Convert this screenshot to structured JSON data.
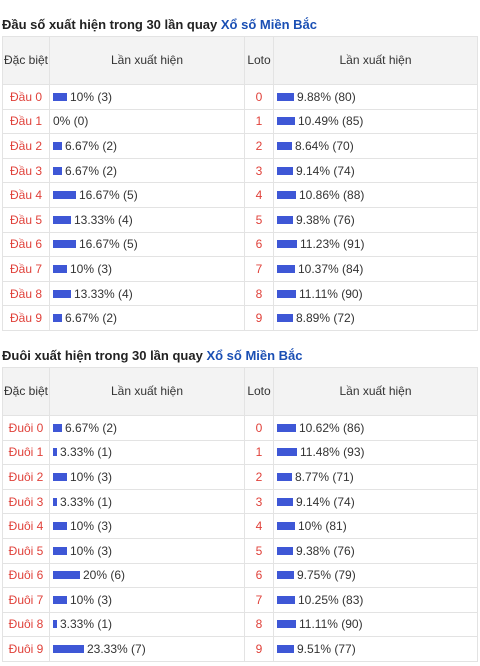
{
  "head_section": {
    "title_prefix": "Đầu số xuất hiện trong 30 lần quay",
    "title_link": "Xổ số Miền Bắc",
    "headers": {
      "col1": "Đặc biệt",
      "col2": "Lần xuất hiện",
      "col3": "Loto",
      "col4": "Lần xuất hiện"
    },
    "rows": [
      {
        "label": "Đầu 0",
        "special": "10% (3)",
        "special_pct": 10,
        "loto": "0",
        "loto_count": "9.88% (80)",
        "loto_pct": 9.88
      },
      {
        "label": "Đầu 1",
        "special": "0% (0)",
        "special_pct": 0,
        "loto": "1",
        "loto_count": "10.49% (85)",
        "loto_pct": 10.49
      },
      {
        "label": "Đầu 2",
        "special": "6.67% (2)",
        "special_pct": 6.67,
        "loto": "2",
        "loto_count": "8.64% (70)",
        "loto_pct": 8.64
      },
      {
        "label": "Đầu 3",
        "special": "6.67% (2)",
        "special_pct": 6.67,
        "loto": "3",
        "loto_count": "9.14% (74)",
        "loto_pct": 9.14
      },
      {
        "label": "Đầu 4",
        "special": "16.67% (5)",
        "special_pct": 16.67,
        "loto": "4",
        "loto_count": "10.86% (88)",
        "loto_pct": 10.86
      },
      {
        "label": "Đầu 5",
        "special": "13.33% (4)",
        "special_pct": 13.33,
        "loto": "5",
        "loto_count": "9.38% (76)",
        "loto_pct": 9.38
      },
      {
        "label": "Đầu 6",
        "special": "16.67% (5)",
        "special_pct": 16.67,
        "loto": "6",
        "loto_count": "11.23% (91)",
        "loto_pct": 11.23
      },
      {
        "label": "Đầu 7",
        "special": "10% (3)",
        "special_pct": 10,
        "loto": "7",
        "loto_count": "10.37% (84)",
        "loto_pct": 10.37
      },
      {
        "label": "Đầu 8",
        "special": "13.33% (4)",
        "special_pct": 13.33,
        "loto": "8",
        "loto_count": "11.11% (90)",
        "loto_pct": 11.11
      },
      {
        "label": "Đầu 9",
        "special": "6.67% (2)",
        "special_pct": 6.67,
        "loto": "9",
        "loto_count": "8.89% (72)",
        "loto_pct": 8.89
      }
    ]
  },
  "tail_section": {
    "title_prefix": "Đuôi xuất hiện trong 30 lần quay",
    "title_link": "Xổ số Miền Bắc",
    "headers": {
      "col1": "Đặc biệt",
      "col2": "Lần xuất hiện",
      "col3": "Loto",
      "col4": "Lần xuất hiện"
    },
    "rows": [
      {
        "label": "Đuôi 0",
        "special": "6.67% (2)",
        "special_pct": 6.67,
        "loto": "0",
        "loto_count": "10.62% (86)",
        "loto_pct": 10.62
      },
      {
        "label": "Đuôi 1",
        "special": "3.33% (1)",
        "special_pct": 3.33,
        "loto": "1",
        "loto_count": "11.48% (93)",
        "loto_pct": 11.48
      },
      {
        "label": "Đuôi 2",
        "special": "10% (3)",
        "special_pct": 10,
        "loto": "2",
        "loto_count": "8.77% (71)",
        "loto_pct": 8.77
      },
      {
        "label": "Đuôi 3",
        "special": "3.33% (1)",
        "special_pct": 3.33,
        "loto": "3",
        "loto_count": "9.14% (74)",
        "loto_pct": 9.14
      },
      {
        "label": "Đuôi 4",
        "special": "10% (3)",
        "special_pct": 10,
        "loto": "4",
        "loto_count": "10% (81)",
        "loto_pct": 10
      },
      {
        "label": "Đuôi 5",
        "special": "10% (3)",
        "special_pct": 10,
        "loto": "5",
        "loto_count": "9.38% (76)",
        "loto_pct": 9.38
      },
      {
        "label": "Đuôi 6",
        "special": "20% (6)",
        "special_pct": 20,
        "loto": "6",
        "loto_count": "9.75% (79)",
        "loto_pct": 9.75
      },
      {
        "label": "Đuôi 7",
        "special": "10% (3)",
        "special_pct": 10,
        "loto": "7",
        "loto_count": "10.25% (83)",
        "loto_pct": 10.25
      },
      {
        "label": "Đuôi 8",
        "special": "3.33% (1)",
        "special_pct": 3.33,
        "loto": "8",
        "loto_count": "11.11% (90)",
        "loto_pct": 11.11
      },
      {
        "label": "Đuôi 9",
        "special": "23.33% (7)",
        "special_pct": 23.33,
        "loto": "9",
        "loto_count": "9.51% (77)",
        "loto_pct": 9.51
      }
    ]
  },
  "colors": {
    "bar": "#3e57d6",
    "label": "#e0413a",
    "link": "#1a4fb4"
  }
}
